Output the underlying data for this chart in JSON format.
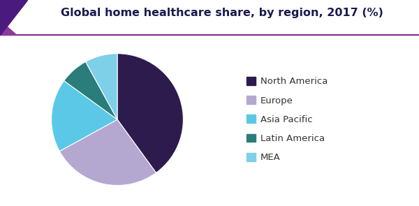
{
  "title": "Global home healthcare share, by region, 2017 (%)",
  "labels": [
    "North America",
    "Europe",
    "Asia Pacific",
    "Latin America",
    "MEA"
  ],
  "values": [
    40,
    27,
    18,
    7,
    8
  ],
  "colors": [
    "#2D1B4E",
    "#B5A8D0",
    "#5BC8E8",
    "#2A7D7B",
    "#7ECFE8"
  ],
  "title_fontsize": 11.5,
  "legend_fontsize": 9.5,
  "background_color": "#ffffff",
  "title_color": "#1a1a4e",
  "header_line_color": "#7B2D8B",
  "startangle": 90,
  "corner_color1": "#4B1A7E",
  "corner_color2": "#8B3A9E"
}
